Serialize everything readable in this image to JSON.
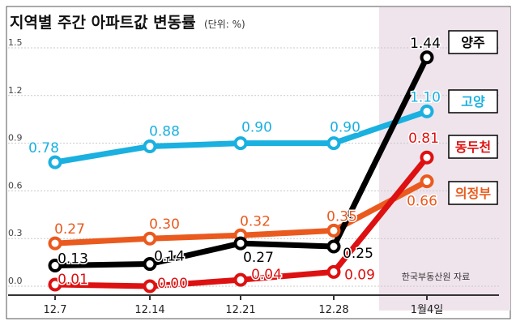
{
  "chart_data": {
    "type": "line",
    "title": "지역별 주간 아파트값 변동률",
    "unit_note": "(단위: %)",
    "source": "한국부동산원 자료",
    "categories": [
      "12.7",
      "12.14",
      "12.21",
      "12.28",
      "1월4일"
    ],
    "ylim": [
      0,
      1.5
    ],
    "yticks": [
      "0.0",
      "0.3",
      "0.6",
      "0.9",
      "1.2",
      "1.5"
    ],
    "ytick_values": [
      0,
      0.3,
      0.6,
      0.9,
      1.2,
      1.5
    ],
    "grid": true,
    "highlight_category": "1월4일",
    "series": [
      {
        "name": "고양",
        "values": [
          0.78,
          0.88,
          0.9,
          0.9,
          1.1
        ],
        "labels": [
          "0.78",
          "0.88",
          "0.90",
          "0.90",
          "1.10"
        ],
        "color": "#1ab0e0"
      },
      {
        "name": "의정부",
        "values": [
          0.27,
          0.3,
          0.32,
          0.35,
          0.66
        ],
        "labels": [
          "0.27",
          "0.30",
          "0.32",
          "0.35",
          "0.66"
        ],
        "color": "#ea5a1e"
      },
      {
        "name": "양주",
        "values": [
          0.13,
          0.14,
          0.27,
          0.25,
          1.44
        ],
        "labels": [
          "0.13",
          "0.14",
          "0.27",
          "0.25",
          "1.44"
        ],
        "color": "#000000"
      },
      {
        "name": "동두천",
        "values": [
          0.01,
          0.0,
          0.04,
          0.09,
          0.81
        ],
        "labels": [
          "0.01",
          "0.00",
          "0.04",
          "0.09",
          "0.81"
        ],
        "color": "#dd1111"
      }
    ]
  },
  "colors": {
    "highlight_band": "#efe4ec",
    "grid": "#c8c8c8",
    "axis": "#333333",
    "tick_text": "#444444"
  }
}
